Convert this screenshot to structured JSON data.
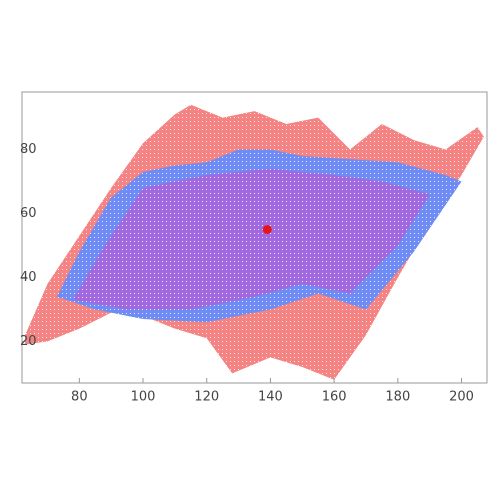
{
  "chart_data": {
    "type": "region",
    "xlim": [
      62,
      208
    ],
    "ylim": [
      7,
      98
    ],
    "xticks": [
      80,
      100,
      120,
      140,
      160,
      180,
      200
    ],
    "yticks": [
      20,
      40,
      60,
      80
    ],
    "series": [
      {
        "color": "#f48484",
        "x": [
          63,
          70,
          80,
          90,
          100,
          110,
          120,
          128,
          140,
          150,
          160,
          170,
          180,
          190,
          200,
          207,
          205,
          195,
          185,
          175,
          165,
          155,
          145,
          135,
          125,
          115,
          110,
          100,
          90,
          80,
          70,
          63
        ],
        "y": [
          19,
          20,
          24,
          29,
          28,
          24,
          21,
          10,
          15,
          12,
          8,
          22,
          40,
          57,
          72,
          84,
          87,
          80,
          83,
          88,
          80,
          90,
          88,
          92,
          90,
          94,
          91,
          82,
          68,
          53,
          38,
          22
        ]
      },
      {
        "color": "#6f8cf4",
        "x": [
          73,
          85,
          100,
          120,
          140,
          155,
          170,
          185,
          200,
          195,
          180,
          165,
          150,
          140,
          130,
          120,
          110,
          100,
          90,
          80
        ],
        "y": [
          34,
          30,
          27,
          26,
          30,
          35,
          30,
          48,
          70,
          72,
          76,
          77,
          78,
          80,
          80,
          76,
          75,
          73,
          65,
          48
        ]
      },
      {
        "color": "#b25ed8",
        "x": [
          78,
          95,
          115,
          135,
          150,
          165,
          180,
          190,
          175,
          160,
          140,
          120,
          100,
          88
        ],
        "y": [
          33,
          30,
          30,
          34,
          38,
          35,
          50,
          66,
          70,
          72,
          74,
          72,
          68,
          50
        ]
      }
    ],
    "points": {
      "color": "#e8141c",
      "x": [
        139
      ],
      "y": [
        55
      ]
    }
  }
}
